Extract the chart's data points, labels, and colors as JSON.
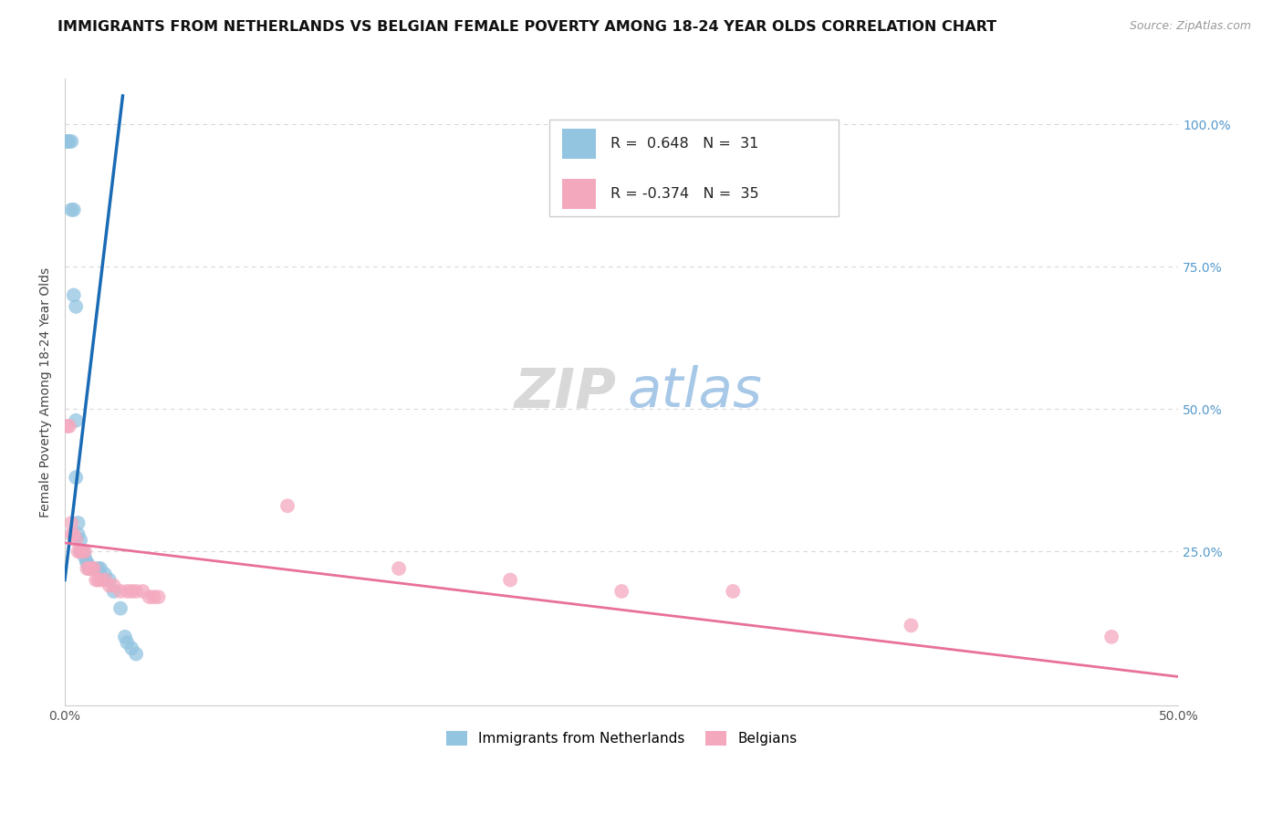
{
  "title": "IMMIGRANTS FROM NETHERLANDS VS BELGIAN FEMALE POVERTY AMONG 18-24 YEAR OLDS CORRELATION CHART",
  "source": "Source: ZipAtlas.com",
  "ylabel": "Female Poverty Among 18-24 Year Olds",
  "xlim": [
    0.0,
    0.5
  ],
  "ylim": [
    -0.02,
    1.08
  ],
  "right_yticks": [
    0.0,
    0.25,
    0.5,
    0.75,
    1.0
  ],
  "right_yticklabels": [
    "",
    "25.0%",
    "50.0%",
    "75.0%",
    "100.0%"
  ],
  "blue_color": "#93c4e0",
  "pink_color": "#f4a8be",
  "blue_line_color": "#1a6bb5",
  "pink_line_color": "#e8709a",
  "blue_x": [
    0.001,
    0.001,
    0.002,
    0.003,
    0.003,
    0.004,
    0.004,
    0.005,
    0.005,
    0.005,
    0.006,
    0.006,
    0.007,
    0.007,
    0.008,
    0.009,
    0.01,
    0.01,
    0.011,
    0.012,
    0.013,
    0.015,
    0.016,
    0.018,
    0.02,
    0.022,
    0.025,
    0.027,
    0.028,
    0.03,
    0.032
  ],
  "blue_y": [
    0.97,
    0.97,
    0.97,
    0.97,
    0.85,
    0.85,
    0.7,
    0.68,
    0.48,
    0.38,
    0.3,
    0.28,
    0.27,
    0.25,
    0.25,
    0.24,
    0.23,
    0.23,
    0.22,
    0.22,
    0.22,
    0.22,
    0.22,
    0.21,
    0.2,
    0.18,
    0.15,
    0.1,
    0.09,
    0.08,
    0.07
  ],
  "pink_x": [
    0.001,
    0.002,
    0.003,
    0.003,
    0.004,
    0.005,
    0.006,
    0.007,
    0.008,
    0.009,
    0.01,
    0.011,
    0.012,
    0.013,
    0.014,
    0.015,
    0.016,
    0.018,
    0.02,
    0.022,
    0.025,
    0.028,
    0.03,
    0.032,
    0.035,
    0.038,
    0.04,
    0.042,
    0.1,
    0.15,
    0.2,
    0.25,
    0.3,
    0.38,
    0.47
  ],
  "pink_y": [
    0.47,
    0.47,
    0.3,
    0.28,
    0.28,
    0.27,
    0.25,
    0.25,
    0.25,
    0.25,
    0.22,
    0.22,
    0.22,
    0.22,
    0.2,
    0.2,
    0.2,
    0.2,
    0.19,
    0.19,
    0.18,
    0.18,
    0.18,
    0.18,
    0.18,
    0.17,
    0.17,
    0.17,
    0.33,
    0.22,
    0.2,
    0.18,
    0.18,
    0.12,
    0.1
  ],
  "title_fontsize": 11.5,
  "source_fontsize": 9,
  "axis_label_fontsize": 10,
  "tick_fontsize": 10,
  "watermark_fontsize_zip": 44,
  "watermark_fontsize_atlas": 44,
  "background_color": "#ffffff",
  "grid_color": "#d8d8d8",
  "right_tick_color": "#5599cc"
}
